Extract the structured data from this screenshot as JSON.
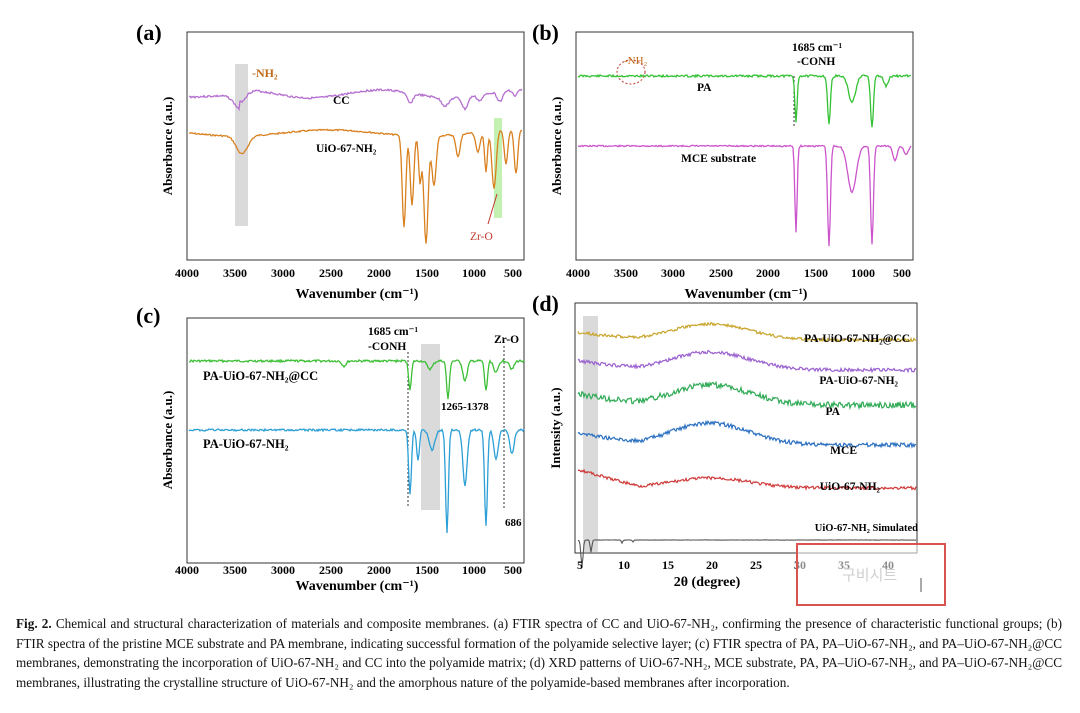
{
  "panels": {
    "a": {
      "label": "(a)",
      "xlabel": "Wavenumber (cm⁻¹)",
      "ylabel": "Absorbance (a.u.)",
      "xticks": [
        "4000",
        "3500",
        "3000",
        "2500",
        "2000",
        "1500",
        "1000",
        "500"
      ],
      "annotations": [
        "-NH₂",
        "Zr-O"
      ],
      "series": [
        {
          "name": "CC",
          "color": "#b56fd0"
        },
        {
          "name": "UiO-67-NH₂",
          "color": "#d9801f"
        }
      ]
    },
    "b": {
      "label": "(b)",
      "xlabel": "Wavenumber (cm⁻¹)",
      "ylabel": "Absorbance (a.u.)",
      "xticks": [
        "4000",
        "3500",
        "3000",
        "2500",
        "2000",
        "1500",
        "1000",
        "500"
      ],
      "annotations": [
        "-NH₂",
        "1685 cm⁻¹",
        "-CONH"
      ],
      "series": [
        {
          "name": "PA",
          "color": "#34c234"
        },
        {
          "name": "MCE substrate",
          "color": "#cc55cc"
        }
      ]
    },
    "c": {
      "label": "(c)",
      "xlabel": "Wavenumber (cm⁻¹)",
      "ylabel": "Absorbance (a.u.)",
      "xticks": [
        "4000",
        "3500",
        "3000",
        "2500",
        "2000",
        "1500",
        "1000",
        "500"
      ],
      "annotations": [
        "1685 cm⁻¹",
        "-CONH",
        "Zr-O",
        "1265-1378",
        "686"
      ],
      "series": [
        {
          "name": "PA-UiO-67-NH₂@CC",
          "color": "#3cbf34"
        },
        {
          "name": "PA-UiO-67-NH₂",
          "color": "#2c9fd6"
        }
      ]
    },
    "d": {
      "label": "(d)",
      "xlabel": "2θ (degree)",
      "ylabel": "Intensity (a.u.)",
      "xticks": [
        "5",
        "10",
        "15",
        "20",
        "25",
        "30",
        "35",
        "40"
      ],
      "watermark": "구비시트",
      "series": [
        {
          "name": "PA-UiO-67-NH₂@CC",
          "color": "#c8a42a"
        },
        {
          "name": "PA-UiO-67-NH₂",
          "color": "#9a5fd0"
        },
        {
          "name": "PA",
          "color": "#2faa55"
        },
        {
          "name": "MCE",
          "color": "#2a6fc0"
        },
        {
          "name": "UiO-67-NH₂",
          "color": "#d03a3a"
        },
        {
          "name": "UiO-67-NH₂ Simulated",
          "color": "#555555"
        }
      ]
    }
  },
  "caption": {
    "label": "Fig. 2.",
    "text": "Chemical and structural characterization of materials and composite membranes. (a) FTIR spectra of CC and UiO-67-NH₂, confirming the presence of characteristic functional groups; (b) FTIR spectra of the pristine MCE substrate and PA membrane, indicating successful formation of the polyamide selective layer; (c) FTIR spectra of PA, PA–UiO-67-NH₂, and PA–UiO-67-NH₂@CC membranes, demonstrating the incorporation of UiO-67-NH₂ and CC into the polyamide matrix; (d) XRD patterns of UiO-67-NH₂, MCE substrate, PA, PA–UiO-67-NH₂, and PA–UiO-67-NH₂@CC membranes, illustrating the crystalline structure of UiO-67-NH₂ and the amorphous nature of the polyamide-based membranes after incorporation."
  }
}
